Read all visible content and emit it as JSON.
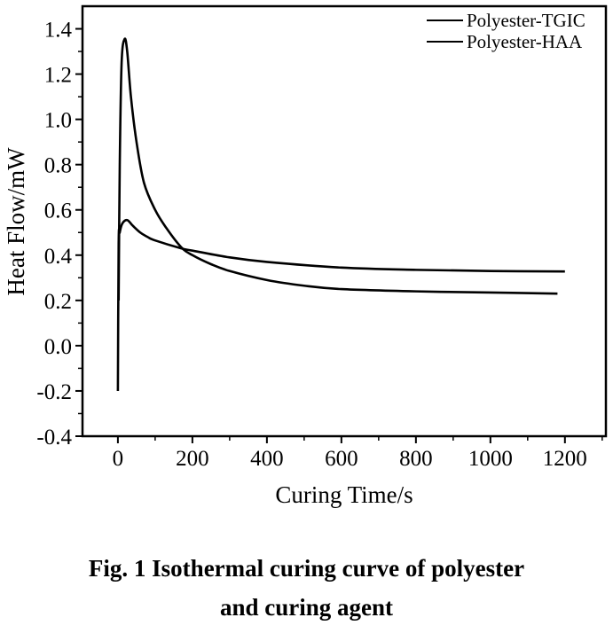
{
  "chart_data": {
    "type": "line",
    "xlabel": "Curing Time/s",
    "ylabel": "Heat Flow/mW",
    "xlim": [
      -95,
      1310
    ],
    "ylim": [
      -0.4,
      1.5
    ],
    "xticks": [
      0,
      200,
      400,
      600,
      800,
      1000,
      1200
    ],
    "yticks": [
      -0.4,
      -0.2,
      0.0,
      0.2,
      0.4,
      0.6,
      0.8,
      1.0,
      1.2,
      1.4
    ],
    "ytick_labels": [
      "-0.4",
      "-0.2",
      "0.0",
      "0.2",
      "0.4",
      "0.6",
      "0.8",
      "1.0",
      "1.2",
      "1.4"
    ],
    "xtick_labels": [
      "0",
      "200",
      "400",
      "600",
      "800",
      "1000",
      "1200"
    ],
    "grid": false,
    "legend_position": "top-right",
    "series": [
      {
        "name": "Polyester-TGIC",
        "color": "#000000",
        "x": [
          2,
          5,
          10,
          18,
          25,
          35,
          50,
          70,
          100,
          130,
          170,
          200,
          250,
          300,
          400,
          500,
          600,
          800,
          1000,
          1180
        ],
        "y": [
          0.2,
          0.8,
          1.25,
          1.355,
          1.3,
          1.1,
          0.9,
          0.72,
          0.6,
          0.52,
          0.435,
          0.4,
          0.36,
          0.33,
          0.29,
          0.265,
          0.25,
          0.24,
          0.235,
          0.23
        ]
      },
      {
        "name": "Polyester-HAA",
        "color": "#000000",
        "x": [
          0,
          2,
          5,
          12,
          25,
          40,
          60,
          80,
          100,
          170,
          200,
          300,
          400,
          600,
          800,
          1000,
          1200
        ],
        "y": [
          -0.2,
          0.45,
          0.5,
          0.54,
          0.555,
          0.53,
          0.5,
          0.48,
          0.465,
          0.43,
          0.42,
          0.39,
          0.37,
          0.345,
          0.335,
          0.33,
          0.328
        ]
      }
    ]
  },
  "caption": {
    "line1": "Fig. 1   Isothermal curing curve of polyester",
    "line2": "and curing agent"
  }
}
